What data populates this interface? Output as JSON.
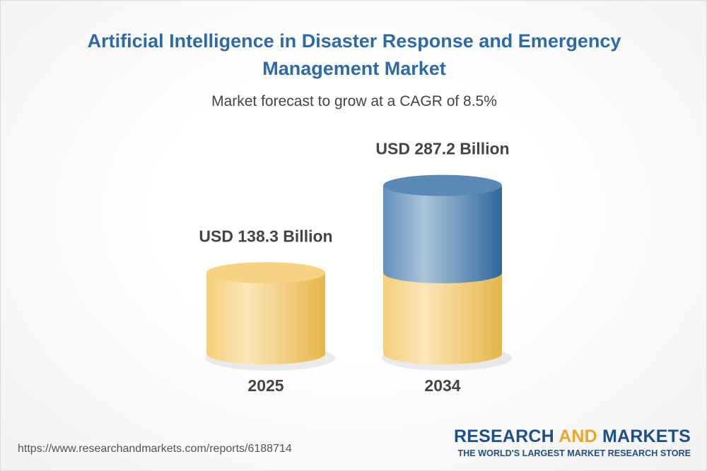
{
  "chart_data": {
    "type": "cylinder",
    "title": "Artificial Intelligence in Disaster Response and Emergency Management Market",
    "subtitle": "Market forecast to grow at a CAGR of 8.5%",
    "categories": [
      "2025",
      "2034"
    ],
    "values": [
      138.3,
      287.2
    ],
    "value_labels": [
      "USD 138.3 Billion",
      "USD 287.2 Billion"
    ],
    "colors": [
      "#f2c04c",
      "#2f6ca3"
    ]
  },
  "source": "https://www.researchandmarkets.com/reports/6188714",
  "logo": {
    "name_parts": [
      "RESEARCH",
      "AND",
      "MARKETS"
    ],
    "tagline": "THE WORLD'S LARGEST MARKET RESEARCH STORE"
  }
}
